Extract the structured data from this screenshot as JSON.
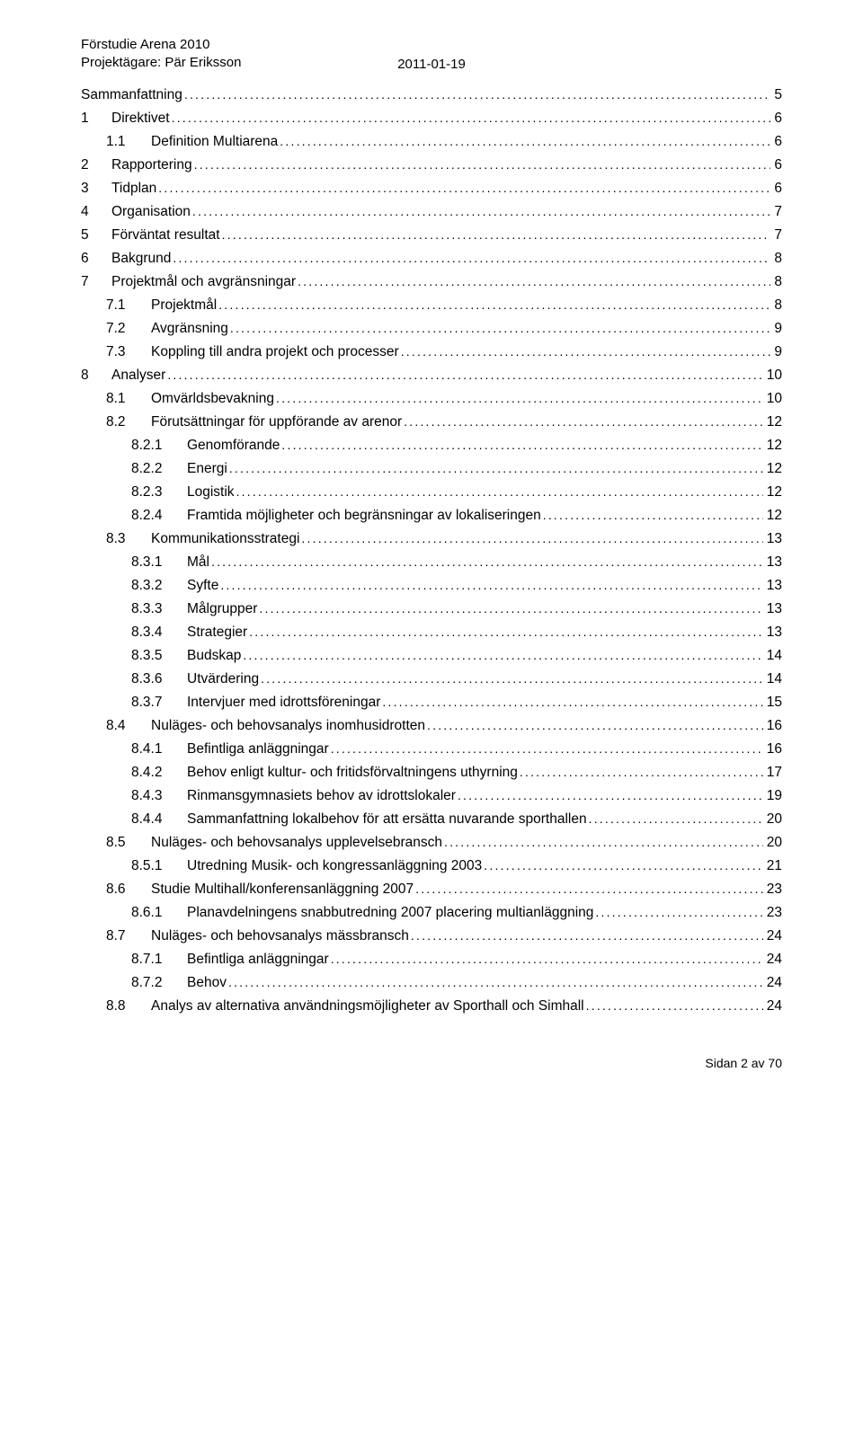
{
  "header": {
    "line1": "Förstudie Arena 2010",
    "line2": "Projektägare: Pär Eriksson",
    "date": "2011-01-19"
  },
  "toc": [
    {
      "level": 0,
      "num": "",
      "label": "Sammanfattning",
      "page": "5"
    },
    {
      "level": 0,
      "num": "1",
      "label": "Direktivet",
      "page": "6"
    },
    {
      "level": 1,
      "num": "1.1",
      "label": "Definition Multiarena",
      "page": "6"
    },
    {
      "level": 0,
      "num": "2",
      "label": "Rapportering",
      "page": "6"
    },
    {
      "level": 0,
      "num": "3",
      "label": "Tidplan",
      "page": "6"
    },
    {
      "level": 0,
      "num": "4",
      "label": "Organisation",
      "page": "7"
    },
    {
      "level": 0,
      "num": "5",
      "label": "Förväntat resultat",
      "page": "7"
    },
    {
      "level": 0,
      "num": "6",
      "label": "Bakgrund",
      "page": "8"
    },
    {
      "level": 0,
      "num": "7",
      "label": "Projektmål och avgränsningar",
      "page": "8"
    },
    {
      "level": 1,
      "num": "7.1",
      "label": "Projektmål",
      "page": "8"
    },
    {
      "level": 1,
      "num": "7.2",
      "label": "Avgränsning",
      "page": "9"
    },
    {
      "level": 1,
      "num": "7.3",
      "label": "Koppling till andra projekt och processer",
      "page": "9"
    },
    {
      "level": 0,
      "num": "8",
      "label": "Analyser",
      "page": "10"
    },
    {
      "level": 1,
      "num": "8.1",
      "label": "Omvärldsbevakning",
      "page": "10"
    },
    {
      "level": 1,
      "num": "8.2",
      "label": "Förutsättningar för uppförande av arenor",
      "page": "12"
    },
    {
      "level": 2,
      "num": "8.2.1",
      "label": "Genomförande",
      "page": "12"
    },
    {
      "level": 2,
      "num": "8.2.2",
      "label": "Energi",
      "page": "12"
    },
    {
      "level": 2,
      "num": "8.2.3",
      "label": "Logistik",
      "page": "12"
    },
    {
      "level": 2,
      "num": "8.2.4",
      "label": "Framtida möjligheter och begränsningar av lokaliseringen",
      "page": "12"
    },
    {
      "level": 1,
      "num": "8.3",
      "label": "Kommunikationsstrategi",
      "page": "13"
    },
    {
      "level": 2,
      "num": "8.3.1",
      "label": "Mål",
      "page": "13"
    },
    {
      "level": 2,
      "num": "8.3.2",
      "label": "Syfte",
      "page": "13"
    },
    {
      "level": 2,
      "num": "8.3.3",
      "label": "Målgrupper",
      "page": "13"
    },
    {
      "level": 2,
      "num": "8.3.4",
      "label": "Strategier",
      "page": "13"
    },
    {
      "level": 2,
      "num": "8.3.5",
      "label": "Budskap",
      "page": "14"
    },
    {
      "level": 2,
      "num": "8.3.6",
      "label": "Utvärdering",
      "page": "14"
    },
    {
      "level": 2,
      "num": "8.3.7",
      "label": "Intervjuer med idrottsföreningar",
      "page": "15"
    },
    {
      "level": 1,
      "num": "8.4",
      "label": "Nuläges- och behovsanalys inomhusidrotten",
      "page": "16"
    },
    {
      "level": 2,
      "num": "8.4.1",
      "label": "Befintliga anläggningar",
      "page": "16"
    },
    {
      "level": 2,
      "num": "8.4.2",
      "label": "Behov enligt kultur- och fritidsförvaltningens uthyrning",
      "page": "17"
    },
    {
      "level": 2,
      "num": "8.4.3",
      "label": "Rinmansgymnasiets behov av idrottslokaler",
      "page": "19"
    },
    {
      "level": 2,
      "num": "8.4.4",
      "label": "Sammanfattning lokalbehov för att ersätta nuvarande sporthallen",
      "page": "20"
    },
    {
      "level": 1,
      "num": "8.5",
      "label": "Nuläges- och behovsanalys upplevelsebransch",
      "page": "20"
    },
    {
      "level": 2,
      "num": "8.5.1",
      "label": "Utredning Musik- och kongressanläggning 2003",
      "page": "21"
    },
    {
      "level": 1,
      "num": "8.6",
      "label": "Studie Multihall/konferensanläggning 2007",
      "page": "23"
    },
    {
      "level": 2,
      "num": "8.6.1",
      "label": "Planavdelningens snabbutredning 2007 placering multianläggning",
      "page": "23"
    },
    {
      "level": 1,
      "num": "8.7",
      "label": "Nuläges- och behovsanalys mässbransch",
      "page": "24"
    },
    {
      "level": 2,
      "num": "8.7.1",
      "label": "Befintliga anläggningar",
      "page": "24"
    },
    {
      "level": 2,
      "num": "8.7.2",
      "label": "Behov",
      "page": "24"
    },
    {
      "level": 1,
      "num": "8.8",
      "label": "Analys av alternativa användningsmöjligheter av Sporthall och Simhall",
      "page": "24"
    }
  ],
  "footer": "Sidan 2 av 70"
}
